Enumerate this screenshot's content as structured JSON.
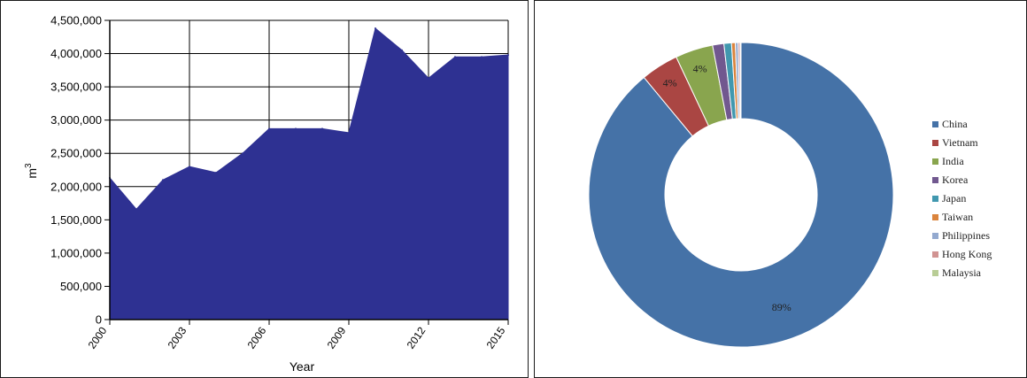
{
  "chart_data": [
    {
      "type": "area",
      "xlabel": "Year",
      "ylabel": "m",
      "ylabel_superscript": "3",
      "ylim": [
        0,
        4500000
      ],
      "yticks": [
        0,
        500000,
        1000000,
        1500000,
        2000000,
        2500000,
        3000000,
        3500000,
        4000000,
        4500000
      ],
      "ytick_labels": [
        "0",
        "500,000",
        "1,000,000",
        "1,500,000",
        "2,000,000",
        "2,500,000",
        "3,000,000",
        "3,500,000",
        "4,000,000",
        "4,500,000"
      ],
      "xlim": [
        2000,
        2015
      ],
      "xticks": [
        2000,
        2003,
        2006,
        2009,
        2012,
        2015
      ],
      "xtick_labels": [
        "2000",
        "2003",
        "2006",
        "2009",
        "2012",
        "2015"
      ],
      "grid": true,
      "color": "#2e3192",
      "x": [
        2000,
        2001,
        2002,
        2003,
        2004,
        2005,
        2006,
        2007,
        2008,
        2009,
        2010,
        2011,
        2012,
        2013,
        2014,
        2015
      ],
      "values": [
        2130000,
        1660000,
        2100000,
        2300000,
        2210000,
        2500000,
        2870000,
        2870000,
        2870000,
        2810000,
        4380000,
        4050000,
        3630000,
        3950000,
        3950000,
        3980000
      ]
    },
    {
      "type": "pie",
      "variant": "donut",
      "legend_position": "right",
      "categories": [
        "China",
        "Vietnam",
        "India",
        "Korea",
        "Japan",
        "Taiwan",
        "Philippines",
        "Hong Kong",
        "Malaysia"
      ],
      "values": [
        89,
        4,
        4,
        1.2,
        0.8,
        0.4,
        0.3,
        0.2,
        0.1
      ],
      "colors": [
        "#4572a7",
        "#aa4643",
        "#89a54e",
        "#71588f",
        "#4198af",
        "#db843d",
        "#93a9cf",
        "#d19392",
        "#b9cd96"
      ],
      "data_labels": [
        "89%",
        "4%",
        "4%",
        "",
        "",
        "",
        "",
        "",
        ""
      ]
    }
  ]
}
